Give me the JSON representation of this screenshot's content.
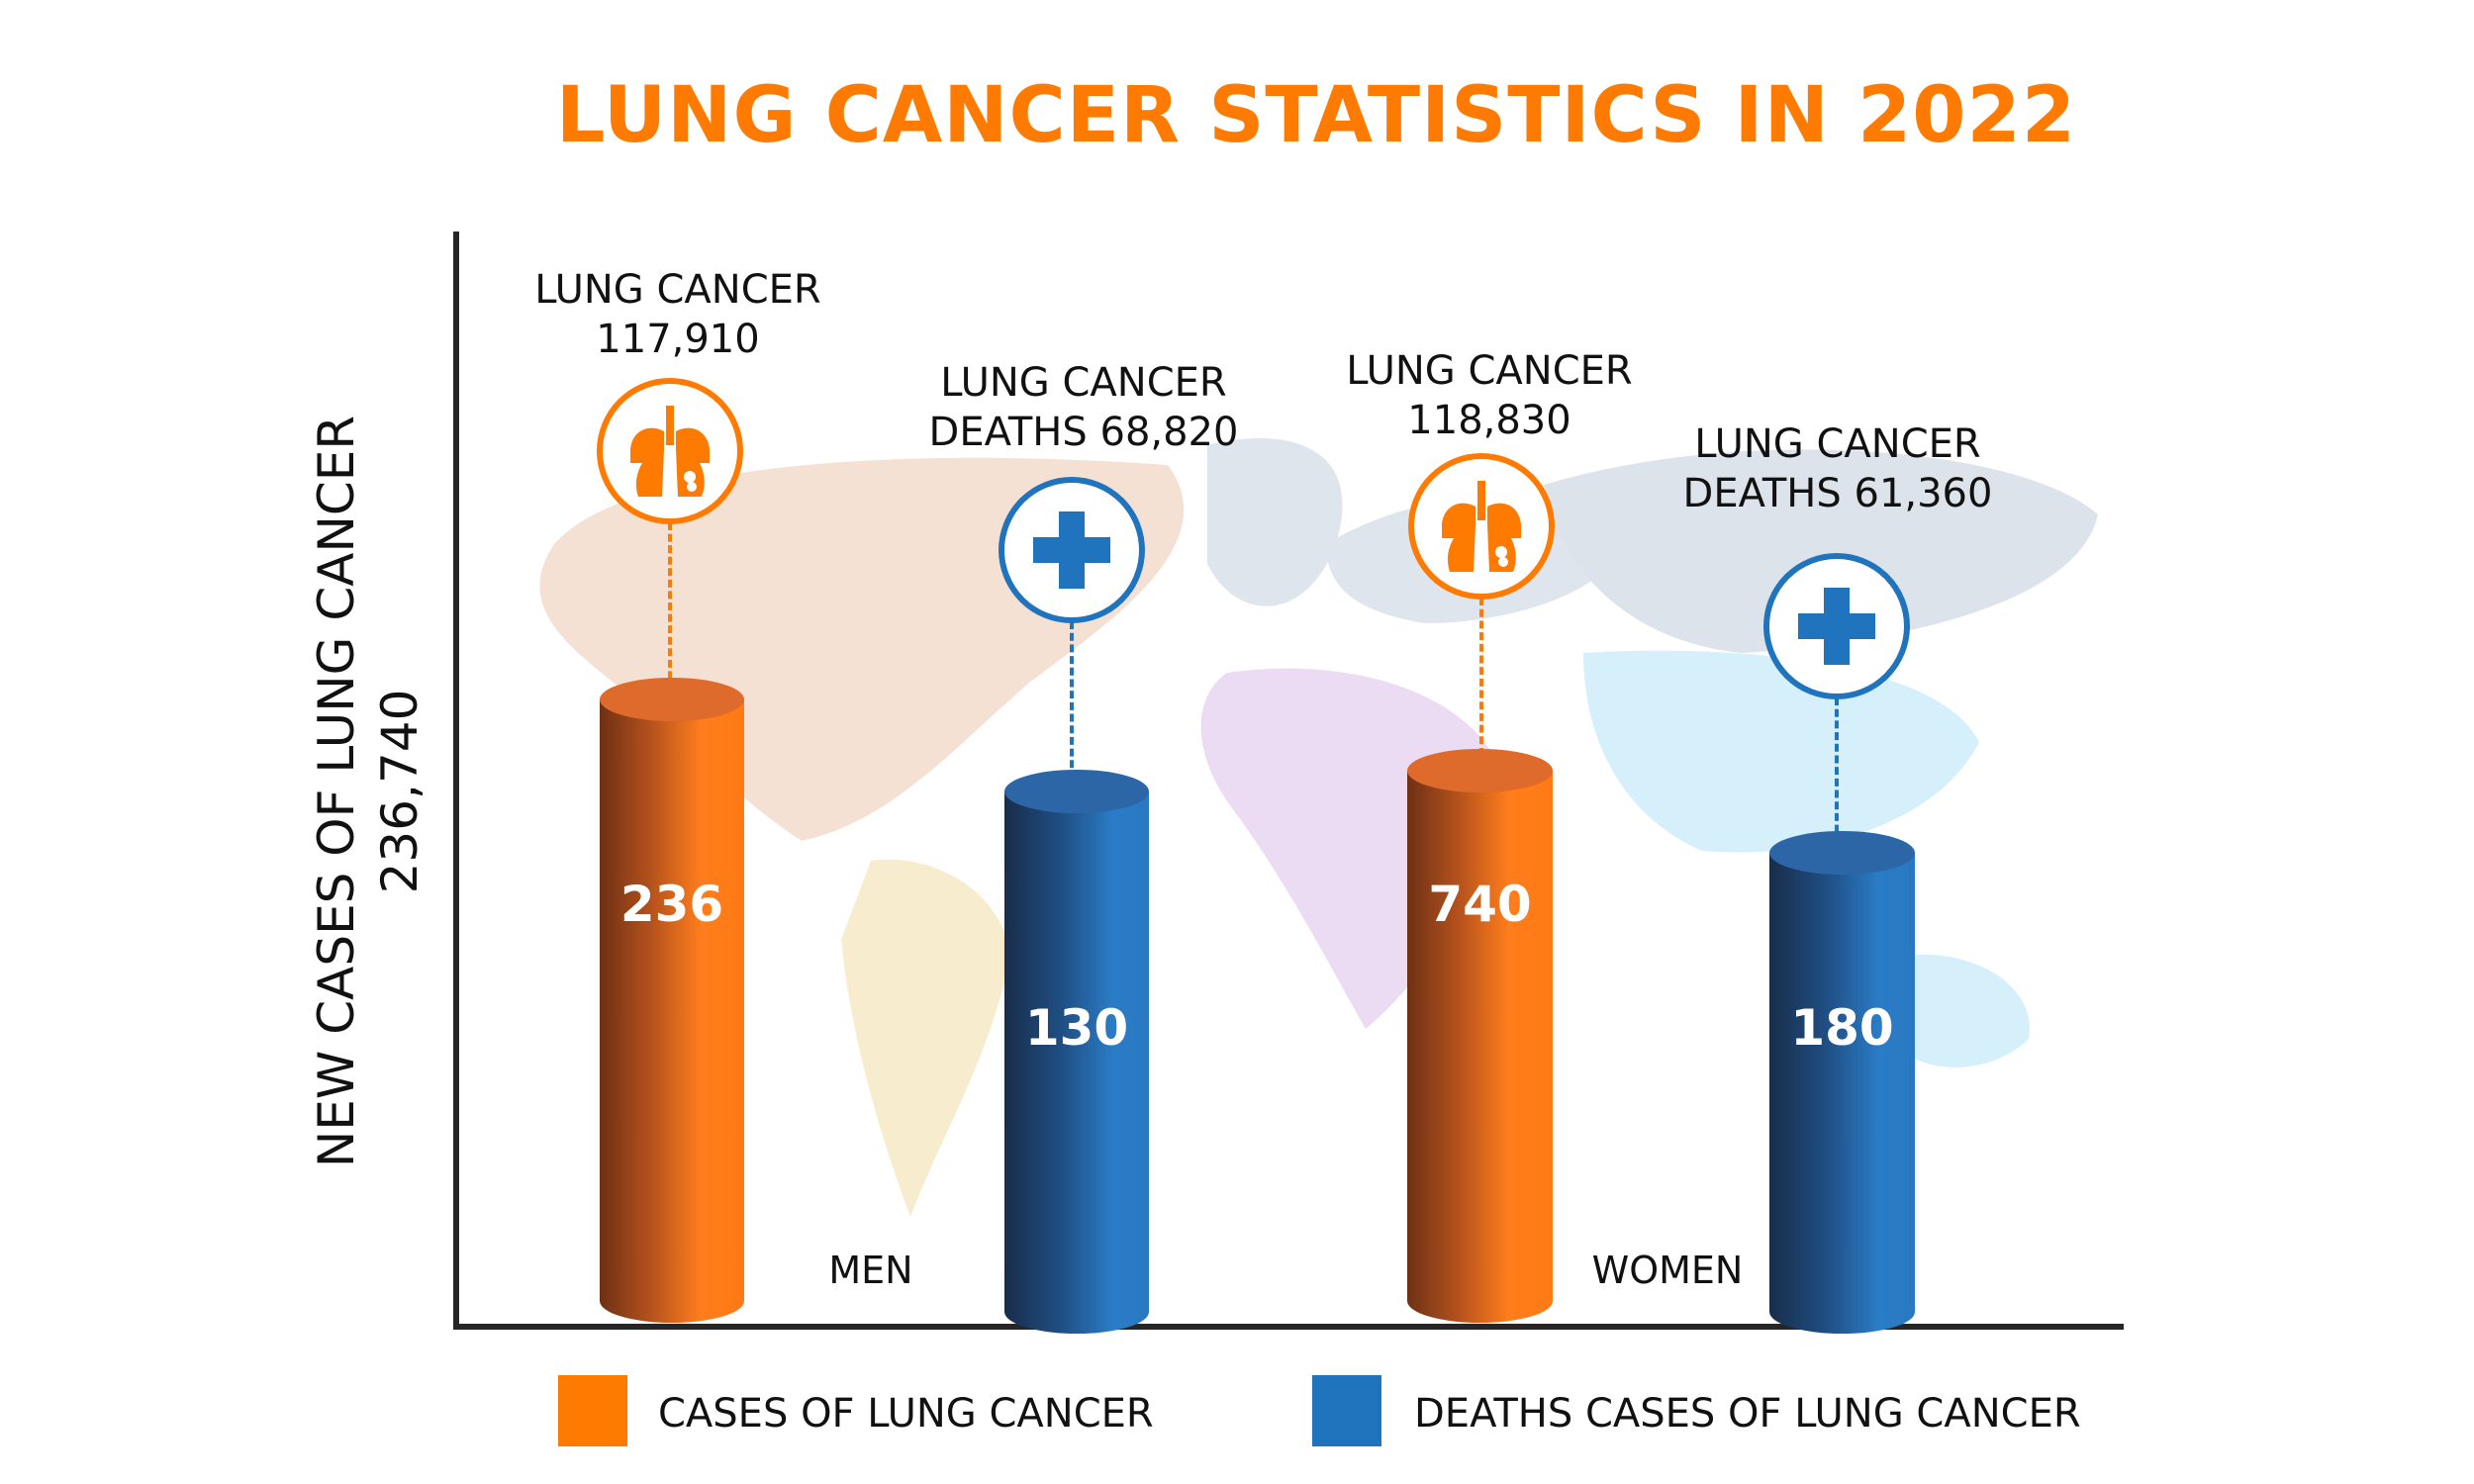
{
  "title": "LUNG CANCER STATISTICS IN 2022",
  "colors": {
    "cases": "#ff7a00",
    "deaths": "#1f74bd",
    "title": "#ff7a00"
  },
  "chart_data": {
    "type": "bar",
    "style": "3d-cylinder",
    "title": "LUNG CANCER STATISTICS IN 2022",
    "ylabel": "NEW CASES OF LUNG CANCER",
    "ylabel_value": "236,740",
    "categories": [
      "MEN",
      "WOMEN"
    ],
    "grid": false,
    "legend_position": "bottom",
    "background": "world-map",
    "series": [
      {
        "name": "CASES OF LUNG CANCER",
        "color": "#ff7a00",
        "icon": "lungs-icon",
        "bar_labels": [
          "236",
          "740"
        ],
        "annotations": [
          {
            "line1": "LUNG CANCER",
            "line2": "117,910"
          },
          {
            "line1": "LUNG CANCER",
            "line2": "118,830"
          }
        ]
      },
      {
        "name": "DEATHS CASES OF LUNG CANCER",
        "color": "#1f74bd",
        "icon": "medical-cross-icon",
        "bar_labels": [
          "130",
          "180"
        ],
        "annotations": [
          {
            "line1": "LUNG CANCER",
            "line2": "DEATHS 68,820"
          },
          {
            "line1": "LUNG CANCER",
            "line2": "DEATHS 61,360"
          }
        ]
      }
    ]
  }
}
